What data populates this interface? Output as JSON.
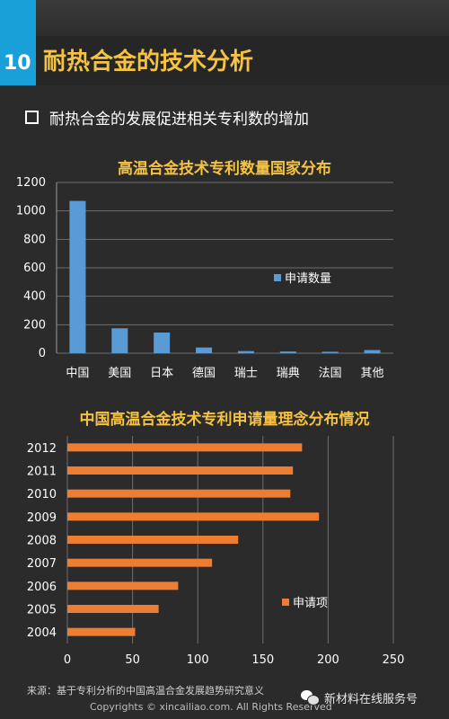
{
  "header": {
    "number": "10",
    "title": "耐热合金的技术分析"
  },
  "bullet": {
    "text": "耐热合金的发展促进相关专利数的增加"
  },
  "chart_data": [
    {
      "type": "bar",
      "title": "高温合金技术专利数量国家分布",
      "categories": [
        "中国",
        "美国",
        "日本",
        "德国",
        "瑞士",
        "瑞典",
        "法国",
        "其他"
      ],
      "series": [
        {
          "name": "申请数量",
          "values": [
            1070,
            175,
            145,
            40,
            15,
            12,
            10,
            22
          ]
        }
      ],
      "ylim": [
        0,
        1200
      ],
      "yticks": [
        0,
        200,
        400,
        600,
        800,
        1000,
        1200
      ],
      "grid": true,
      "legend": "right",
      "colors": {
        "bar": "#5b9bd5",
        "grid": "#6e6e6e"
      }
    },
    {
      "type": "bar",
      "orientation": "horizontal",
      "title": "中国高温合金技术专利申请量理念分布情况",
      "categories": [
        "2012",
        "2011",
        "2010",
        "2009",
        "2008",
        "2007",
        "2006",
        "2005",
        "2004"
      ],
      "series": [
        {
          "name": "申请项",
          "values": [
            180,
            173,
            171,
            193,
            131,
            111,
            85,
            70,
            52
          ]
        }
      ],
      "xlim": [
        0,
        250
      ],
      "xticks": [
        0,
        50,
        100,
        150,
        200,
        250
      ],
      "grid": true,
      "legend": "right",
      "colors": {
        "bar": "#ed7d31",
        "grid": "#6e6e6e"
      }
    }
  ],
  "footer": {
    "source": "来源：基于专利分析的中国高温合金发展趋势研究意义",
    "copyright": "Copyrights © xincailiao.com. All Rights Reserved",
    "service": "新材料在线服务号"
  }
}
